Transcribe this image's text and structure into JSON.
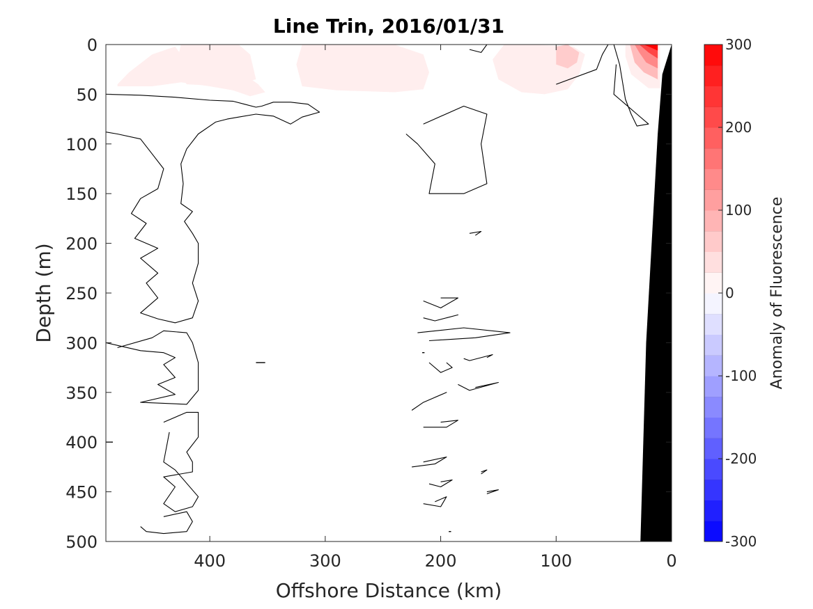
{
  "chart_data": {
    "type": "heatmap",
    "title": "Line Trin, 2016/01/31",
    "xlabel": "Offshore Distance (km)",
    "ylabel": "Depth (m)",
    "xlim": [
      490,
      0
    ],
    "ylim": [
      0,
      500
    ],
    "x_reversed": true,
    "y_reversed": true,
    "x_ticks": [
      400,
      300,
      200,
      100,
      0
    ],
    "y_ticks": [
      0,
      50,
      100,
      150,
      200,
      250,
      300,
      350,
      400,
      450,
      500
    ],
    "grid": false,
    "colorbar": {
      "label": "Anomaly of Fluorescence",
      "range": [
        -300,
        300
      ],
      "levels": 24,
      "ticks": [
        300,
        200,
        100,
        0,
        -100,
        -200,
        -300
      ],
      "colors": {
        "low": "#0000ff",
        "mid": "#ffffff",
        "high": "#ff0000"
      }
    },
    "positive_patches": [
      {
        "value": 20,
        "points": [
          [
            480,
            40
          ],
          [
            470,
            28
          ],
          [
            450,
            10
          ],
          [
            430,
            2
          ],
          [
            420,
            18
          ],
          [
            405,
            30
          ],
          [
            390,
            28
          ],
          [
            370,
            30
          ],
          [
            358,
            40
          ],
          [
            352,
            48
          ],
          [
            365,
            52
          ],
          [
            380,
            46
          ],
          [
            400,
            42
          ],
          [
            425,
            38
          ],
          [
            450,
            42
          ],
          [
            480,
            42
          ]
        ]
      },
      {
        "value": 20,
        "points": [
          [
            425,
            0
          ],
          [
            375,
            0
          ],
          [
            365,
            10
          ],
          [
            360,
            35
          ],
          [
            385,
            42
          ],
          [
            420,
            40
          ],
          [
            430,
            25
          ]
        ]
      },
      {
        "value": 20,
        "points": [
          [
            320,
            0
          ],
          [
            240,
            0
          ],
          [
            215,
            10
          ],
          [
            210,
            28
          ],
          [
            215,
            45
          ],
          [
            240,
            48
          ],
          [
            290,
            46
          ],
          [
            320,
            42
          ],
          [
            325,
            20
          ]
        ]
      },
      {
        "value": 20,
        "points": [
          [
            145,
            0
          ],
          [
            120,
            0
          ],
          [
            85,
            2
          ],
          [
            75,
            10
          ],
          [
            80,
            30
          ],
          [
            90,
            45
          ],
          [
            110,
            50
          ],
          [
            130,
            48
          ],
          [
            150,
            35
          ],
          [
            155,
            15
          ]
        ]
      },
      {
        "value": 60,
        "points": [
          [
            100,
            2
          ],
          [
            90,
            0
          ],
          [
            80,
            8
          ],
          [
            82,
            18
          ],
          [
            90,
            24
          ],
          [
            100,
            20
          ]
        ]
      },
      {
        "value": 20,
        "points": [
          [
            40,
            0
          ],
          [
            20,
            0
          ],
          [
            10,
            0
          ],
          [
            10,
            44
          ],
          [
            20,
            44
          ],
          [
            35,
            30
          ],
          [
            40,
            12
          ]
        ]
      },
      {
        "value": 80,
        "points": [
          [
            36,
            0
          ],
          [
            12,
            0
          ],
          [
            12,
            35
          ],
          [
            24,
            28
          ],
          [
            32,
            18
          ]
        ]
      },
      {
        "value": 140,
        "points": [
          [
            32,
            0
          ],
          [
            12,
            0
          ],
          [
            12,
            24
          ],
          [
            22,
            18
          ],
          [
            28,
            8
          ]
        ]
      },
      {
        "value": 220,
        "points": [
          [
            28,
            0
          ],
          [
            12,
            0
          ],
          [
            12,
            14
          ],
          [
            20,
            8
          ]
        ]
      },
      {
        "value": 300,
        "points": [
          [
            24,
            0
          ],
          [
            12,
            0
          ],
          [
            12,
            6
          ],
          [
            18,
            3
          ]
        ]
      }
    ],
    "zero_contours": [
      [
        [
          490,
          50
        ],
        [
          460,
          51
        ],
        [
          430,
          53
        ],
        [
          400,
          56
        ],
        [
          380,
          57
        ],
        [
          370,
          60
        ],
        [
          360,
          63
        ],
        [
          355,
          62
        ],
        [
          345,
          58
        ],
        [
          330,
          58
        ],
        [
          315,
          60
        ],
        [
          305,
          68
        ],
        [
          320,
          73
        ],
        [
          330,
          80
        ],
        [
          345,
          72
        ],
        [
          360,
          70
        ],
        [
          375,
          73
        ],
        [
          385,
          75
        ],
        [
          395,
          78
        ],
        [
          410,
          90
        ],
        [
          420,
          105
        ],
        [
          425,
          120
        ],
        [
          423,
          140
        ],
        [
          425,
          160
        ],
        [
          415,
          168
        ],
        [
          422,
          178
        ],
        [
          415,
          190
        ],
        [
          410,
          200
        ],
        [
          410,
          220
        ],
        [
          415,
          240
        ],
        [
          410,
          258
        ],
        [
          415,
          275
        ],
        [
          430,
          280
        ],
        [
          445,
          276
        ],
        [
          460,
          270
        ],
        [
          445,
          255
        ],
        [
          455,
          240
        ],
        [
          445,
          230
        ],
        [
          460,
          215
        ],
        [
          445,
          205
        ],
        [
          465,
          195
        ],
        [
          455,
          180
        ],
        [
          468,
          170
        ],
        [
          460,
          155
        ],
        [
          445,
          145
        ],
        [
          440,
          125
        ],
        [
          450,
          110
        ],
        [
          460,
          95
        ],
        [
          480,
          90
        ],
        [
          490,
          88
        ]
      ],
      [
        [
          490,
          300
        ],
        [
          460,
          308
        ],
        [
          440,
          310
        ],
        [
          430,
          315
        ],
        [
          440,
          322
        ],
        [
          430,
          335
        ],
        [
          445,
          342
        ],
        [
          430,
          352
        ],
        [
          460,
          360
        ],
        [
          420,
          362
        ],
        [
          410,
          348
        ],
        [
          410,
          320
        ],
        [
          415,
          300
        ],
        [
          420,
          290
        ],
        [
          440,
          288
        ],
        [
          450,
          295
        ],
        [
          480,
          305
        ]
      ],
      [
        [
          440,
          380
        ],
        [
          420,
          370
        ],
        [
          410,
          370
        ],
        [
          410,
          395
        ],
        [
          420,
          410
        ],
        [
          415,
          420
        ],
        [
          415,
          430
        ],
        [
          440,
          435
        ],
        [
          430,
          445
        ],
        [
          440,
          462
        ],
        [
          430,
          470
        ],
        [
          415,
          465
        ],
        [
          410,
          455
        ],
        [
          430,
          428
        ],
        [
          440,
          420
        ],
        [
          435,
          390
        ]
      ],
      [
        [
          440,
          475
        ],
        [
          420,
          470
        ],
        [
          415,
          480
        ],
        [
          420,
          490
        ],
        [
          440,
          492
        ],
        [
          455,
          490
        ],
        [
          460,
          485
        ]
      ],
      [
        [
          215,
          80
        ],
        [
          180,
          62
        ],
        [
          160,
          70
        ],
        [
          165,
          100
        ],
        [
          160,
          140
        ],
        [
          180,
          150
        ],
        [
          210,
          150
        ],
        [
          205,
          120
        ],
        [
          220,
          100
        ],
        [
          230,
          90
        ]
      ],
      [
        [
          200,
          255
        ],
        [
          185,
          255
        ],
        [
          200,
          265
        ],
        [
          215,
          258
        ]
      ],
      [
        [
          195,
          275
        ],
        [
          185,
          272
        ],
        [
          205,
          278
        ],
        [
          215,
          275
        ]
      ],
      [
        [
          220,
          290
        ],
        [
          180,
          285
        ],
        [
          140,
          290
        ],
        [
          170,
          295
        ],
        [
          210,
          298
        ]
      ],
      [
        [
          195,
          320
        ],
        [
          190,
          325
        ],
        [
          200,
          330
        ],
        [
          210,
          320
        ]
      ],
      [
        [
          205,
          355
        ],
        [
          195,
          350
        ],
        [
          215,
          360
        ],
        [
          225,
          368
        ]
      ],
      [
        [
          200,
          380
        ],
        [
          185,
          378
        ],
        [
          195,
          385
        ],
        [
          215,
          385
        ]
      ],
      [
        [
          215,
          420
        ],
        [
          195,
          415
        ],
        [
          205,
          422
        ],
        [
          225,
          425
        ]
      ],
      [
        [
          200,
          440
        ],
        [
          190,
          438
        ],
        [
          200,
          445
        ],
        [
          210,
          442
        ]
      ],
      [
        [
          205,
          460
        ],
        [
          195,
          455
        ],
        [
          200,
          465
        ],
        [
          215,
          462
        ]
      ],
      [
        [
          175,
          190
        ],
        [
          165,
          188
        ],
        [
          170,
          192
        ]
      ],
      [
        [
          170,
          345
        ],
        [
          150,
          340
        ],
        [
          175,
          348
        ],
        [
          185,
          342
        ]
      ],
      [
        [
          160,
          315
        ],
        [
          155,
          312
        ],
        [
          175,
          318
        ],
        [
          180,
          316
        ]
      ],
      [
        [
          165,
          430
        ],
        [
          160,
          428
        ],
        [
          165,
          432
        ]
      ],
      [
        [
          160,
          450
        ],
        [
          150,
          448
        ],
        [
          160,
          452
        ]
      ],
      [
        [
          100,
          40
        ],
        [
          65,
          25
        ],
        [
          60,
          10
        ],
        [
          55,
          0
        ]
      ],
      [
        [
          50,
          0
        ],
        [
          45,
          20
        ],
        [
          40,
          55
        ],
        [
          35,
          70
        ],
        [
          30,
          82
        ],
        [
          20,
          80
        ],
        [
          30,
          70
        ],
        [
          40,
          60
        ],
        [
          50,
          50
        ],
        [
          48,
          20
        ]
      ],
      [
        [
          170,
          0
        ],
        [
          160,
          0
        ],
        [
          165,
          8
        ],
        [
          175,
          5
        ]
      ]
    ],
    "dashes": [
      {
        "x": [
          360,
          352
        ],
        "y": 320
      },
      {
        "x": [
          490,
          484
        ],
        "y": 400
      },
      {
        "x": [
          216,
          214
        ],
        "y": 310
      },
      {
        "x": [
          193,
          191
        ],
        "y": 490
      }
    ],
    "bathymetry": [
      [
        0,
        0
      ],
      [
        8,
        30
      ],
      [
        12,
        90
      ],
      [
        22,
        300
      ],
      [
        27,
        500
      ],
      [
        0,
        500
      ]
    ],
    "bathymetry_color": "#000000"
  }
}
